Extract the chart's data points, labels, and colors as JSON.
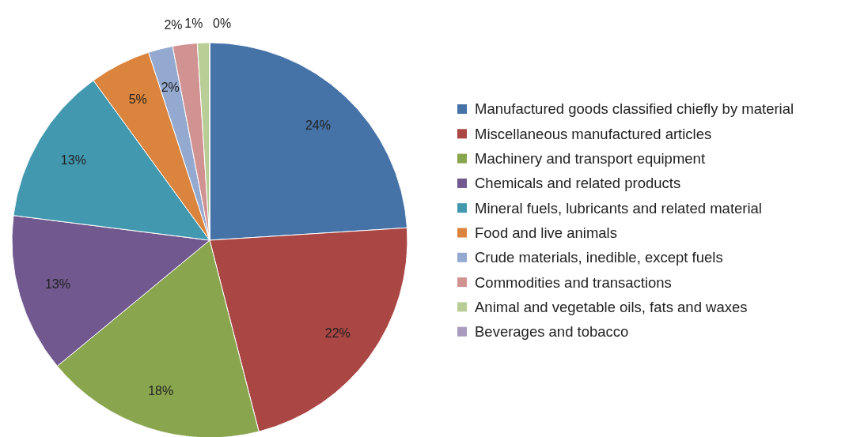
{
  "chart_data": {
    "type": "pie",
    "categories": [
      "Manufactured goods classified chiefly by material",
      "Miscellaneous manufactured articles",
      "Machinery and transport equipment",
      "Chemicals and related products",
      "Mineral fuels, lubricants and related material",
      "Food and live animals",
      "Crude materials, inedible, except fuels",
      "Commodities and transactions",
      "Animal and vegetable oils, fats and waxes",
      "Beverages and tobacco"
    ],
    "values": [
      24,
      22,
      18,
      13,
      13,
      5,
      2,
      2,
      1,
      0
    ],
    "value_labels": [
      "24%",
      "22%",
      "18%",
      "13%",
      "13%",
      "5%",
      "2%",
      "2%",
      "1%",
      "0%"
    ],
    "colors": [
      "#4572a7",
      "#aa4643",
      "#89a54e",
      "#71588f",
      "#4198af",
      "#db843d",
      "#93a9cf",
      "#d19392",
      "#b9cd96",
      "#a99bbd"
    ],
    "legend": "right"
  }
}
